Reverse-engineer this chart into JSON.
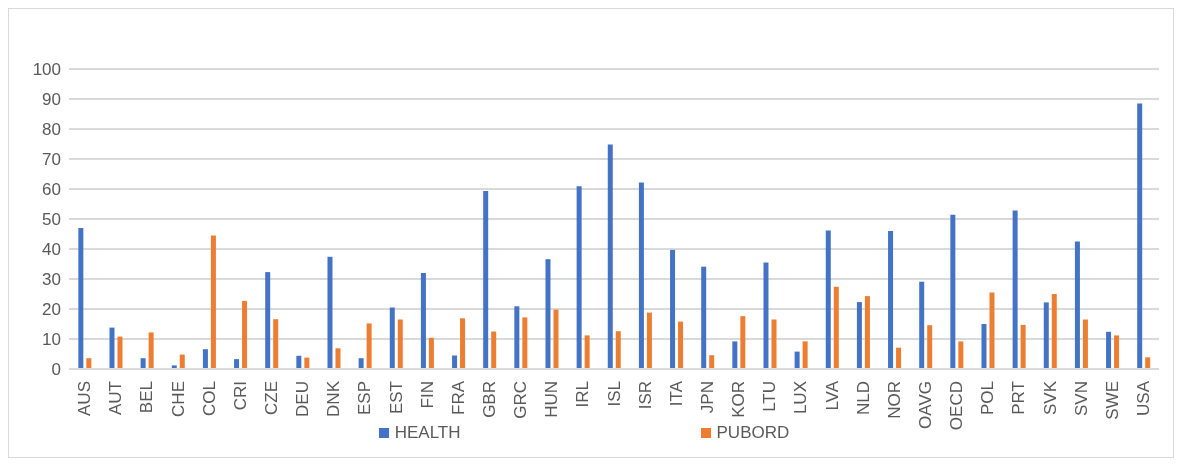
{
  "chart_data": {
    "type": "bar",
    "categories": [
      "AUS",
      "AUT",
      "BEL",
      "CHE",
      "COL",
      "CRI",
      "CZE",
      "DEU",
      "DNK",
      "ESP",
      "EST",
      "FIN",
      "FRA",
      "GBR",
      "GRC",
      "HUN",
      "IRL",
      "ISL",
      "ISR",
      "ITA",
      "JPN",
      "KOR",
      "LTU",
      "LUX",
      "LVA",
      "NLD",
      "NOR",
      "OAVG",
      "OECD",
      "POL",
      "PRT",
      "SVK",
      "SVN",
      "SWE",
      "USA"
    ],
    "series": [
      {
        "name": "HEALTH",
        "color": "#4472c4",
        "values": [
          47,
          13.8,
          3.6,
          1.2,
          6.6,
          3.3,
          32.3,
          4.4,
          37.4,
          3.6,
          20.5,
          32,
          4.5,
          59.3,
          20.9,
          36.6,
          60.9,
          74.8,
          62.2,
          39.7,
          34.1,
          9.2,
          35.5,
          5.8,
          46.2,
          22.3,
          46,
          29.1,
          51.4,
          15,
          52.8,
          22.2,
          42.5,
          12.4,
          88.5
        ]
      },
      {
        "name": "PUBORD",
        "color": "#ed7d31",
        "values": [
          3.6,
          10.8,
          12.2,
          4.8,
          44.5,
          22.7,
          16.6,
          3.8,
          6.9,
          15.2,
          16.5,
          10.4,
          16.9,
          12.5,
          17.2,
          19.8,
          11.2,
          12.6,
          18.8,
          15.8,
          4.6,
          17.6,
          16.5,
          9.2,
          27.4,
          24.3,
          7.1,
          14.6,
          9.2,
          25.5,
          14.7,
          25,
          16.5,
          11.2,
          3.9
        ]
      }
    ],
    "ylim": [
      0,
      100
    ],
    "yticks": [
      0,
      10,
      20,
      30,
      40,
      50,
      60,
      70,
      80,
      90,
      100
    ],
    "grid": "y",
    "legend": "bottom"
  }
}
